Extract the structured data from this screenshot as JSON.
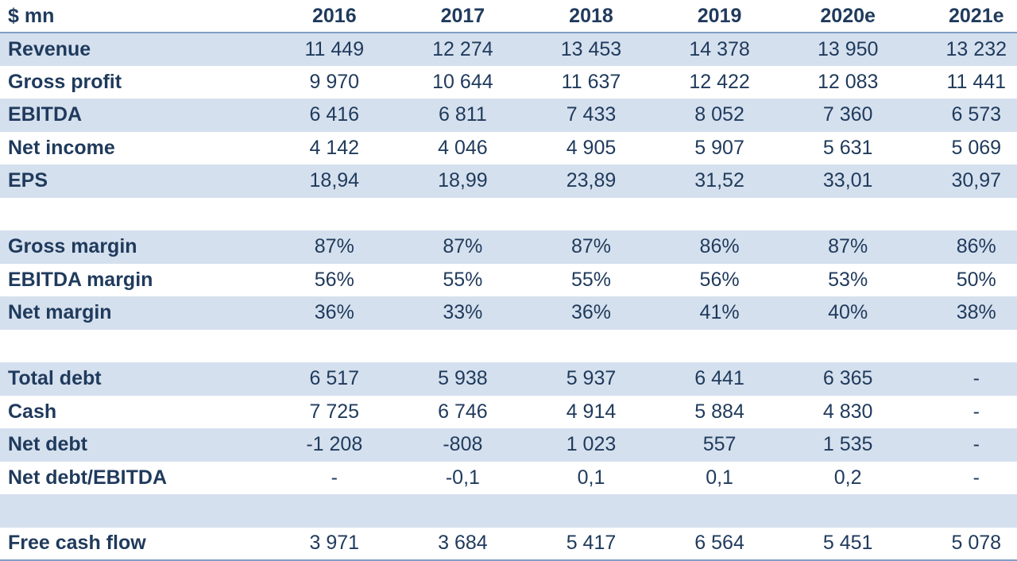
{
  "header": {
    "label": "$ mn",
    "years": [
      "2016",
      "2017",
      "2018",
      "2019",
      "2020e",
      "2021e"
    ]
  },
  "rows": [
    {
      "label": "Revenue",
      "values": [
        "11 449",
        "12 274",
        "13 453",
        "14 378",
        "13 950",
        "13 232"
      ],
      "band": true
    },
    {
      "label": "Gross profit",
      "values": [
        "9 970",
        "10 644",
        "11 637",
        "12 422",
        "12 083",
        "11 441"
      ],
      "band": false
    },
    {
      "label": "EBITDA",
      "values": [
        "6 416",
        "6 811",
        "7 433",
        "8 052",
        "7 360",
        "6 573"
      ],
      "band": true
    },
    {
      "label": "Net income",
      "values": [
        "4 142",
        "4 046",
        "4 905",
        "5 907",
        "5 631",
        "5 069"
      ],
      "band": false
    },
    {
      "label": "EPS",
      "values": [
        "18,94",
        "18,99",
        "23,89",
        "31,52",
        "33,01",
        "30,97"
      ],
      "band": true
    },
    {
      "label": "",
      "values": [
        "",
        "",
        "",
        "",
        "",
        ""
      ],
      "band": false
    },
    {
      "label": "Gross margin",
      "values": [
        "87%",
        "87%",
        "87%",
        "86%",
        "87%",
        "86%"
      ],
      "band": true
    },
    {
      "label": "EBITDA margin",
      "values": [
        "56%",
        "55%",
        "55%",
        "56%",
        "53%",
        "50%"
      ],
      "band": false
    },
    {
      "label": "Net margin",
      "values": [
        "36%",
        "33%",
        "36%",
        "41%",
        "40%",
        "38%"
      ],
      "band": true
    },
    {
      "label": "",
      "values": [
        "",
        "",
        "",
        "",
        "",
        ""
      ],
      "band": false
    },
    {
      "label": "Total debt",
      "values": [
        "6 517",
        "5 938",
        "5 937",
        "6 441",
        "6 365",
        "-"
      ],
      "band": true
    },
    {
      "label": "Cash",
      "values": [
        "7 725",
        "6 746",
        "4 914",
        "5 884",
        "4 830",
        "-"
      ],
      "band": false
    },
    {
      "label": "Net debt",
      "values": [
        "-1 208",
        "-808",
        "1 023",
        "557",
        "1 535",
        "-"
      ],
      "band": true
    },
    {
      "label": "Net debt/EBITDA",
      "values": [
        "-",
        "-0,1",
        "0,1",
        "0,1",
        "0,2",
        "-"
      ],
      "band": false
    },
    {
      "label": "",
      "values": [
        "",
        "",
        "",
        "",
        "",
        ""
      ],
      "band": true
    },
    {
      "label": "Free cash flow",
      "values": [
        "3 971",
        "3 684",
        "5 417",
        "6 564",
        "5 451",
        "5 078"
      ],
      "band": false
    }
  ]
}
